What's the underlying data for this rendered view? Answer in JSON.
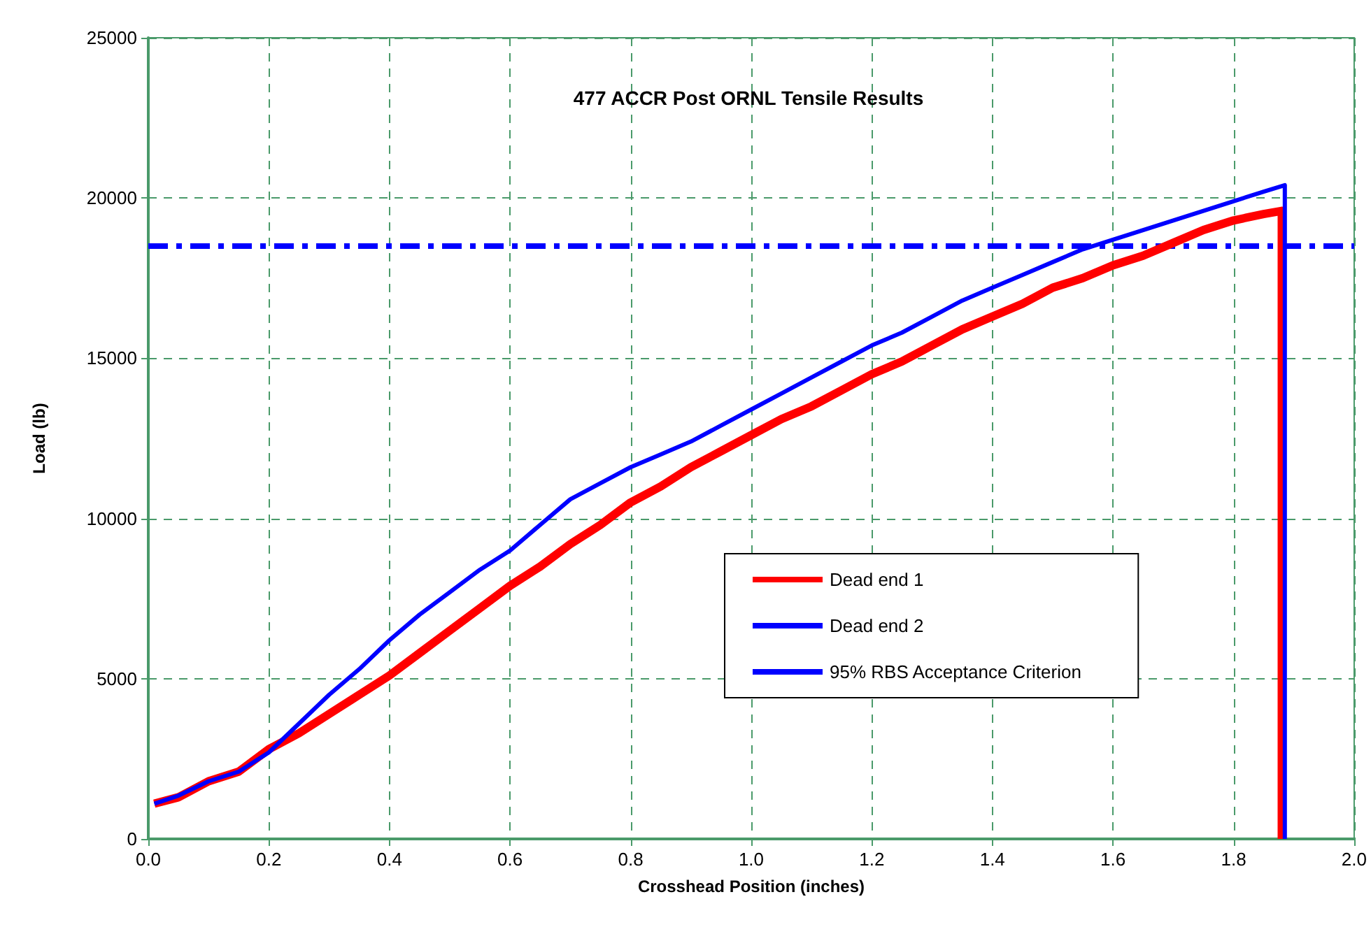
{
  "chart_data": {
    "type": "line",
    "title": "477 ACCR Post ORNL Tensile Results",
    "xlabel": "Crosshead Position (inches)",
    "ylabel": "Load (lb)",
    "xlim": [
      0,
      2
    ],
    "xticks": [
      {
        "value": 0,
        "label": "0.0"
      },
      {
        "value": 0.2,
        "label": "0.2"
      },
      {
        "value": 0.4,
        "label": "0.4"
      },
      {
        "value": 0.6,
        "label": "0.6"
      },
      {
        "value": 0.8,
        "label": "0.8"
      },
      {
        "value": 1,
        "label": "1.0"
      },
      {
        "value": 1.2,
        "label": "1.2"
      },
      {
        "value": 1.4,
        "label": "1.4"
      },
      {
        "value": 1.6,
        "label": "1.6"
      },
      {
        "value": 1.8,
        "label": "1.8"
      },
      {
        "value": 2,
        "label": "2.0"
      }
    ],
    "ylim": [
      0,
      25000
    ],
    "yticks": [
      0,
      5000,
      10000,
      15000,
      20000,
      25000
    ],
    "grid": true,
    "legend": "bottom right",
    "marker": "none",
    "series": [
      {
        "name": "Dead end 1",
        "color": "#ff0000",
        "line_style": "solid",
        "x": [
          0.01,
          0.05,
          0.1,
          0.15,
          0.2,
          0.25,
          0.3,
          0.35,
          0.4,
          0.45,
          0.5,
          0.55,
          0.6,
          0.65,
          0.7,
          0.75,
          0.8,
          0.85,
          0.9,
          0.95,
          1.0,
          1.05,
          1.1,
          1.15,
          1.2,
          1.25,
          1.3,
          1.35,
          1.4,
          1.45,
          1.5,
          1.55,
          1.6,
          1.65,
          1.7,
          1.75,
          1.8,
          1.85,
          1.88,
          1.88
        ],
        "values": [
          1100,
          1300,
          1800,
          2100,
          2800,
          3300,
          3900,
          4500,
          5100,
          5800,
          6500,
          7200,
          7900,
          8500,
          9200,
          9800,
          10500,
          11000,
          11600,
          12100,
          12600,
          13100,
          13500,
          14000,
          14500,
          14900,
          15400,
          15900,
          16300,
          16700,
          17200,
          17500,
          17900,
          18200,
          18600,
          19000,
          19300,
          19500,
          19600,
          0
        ]
      },
      {
        "name": "Dead end 2",
        "color": "#0000ff",
        "line_style": "solid",
        "x": [
          0.01,
          0.05,
          0.1,
          0.15,
          0.2,
          0.25,
          0.3,
          0.35,
          0.4,
          0.45,
          0.5,
          0.55,
          0.6,
          0.65,
          0.7,
          0.75,
          0.8,
          0.85,
          0.9,
          0.95,
          1.0,
          1.05,
          1.1,
          1.15,
          1.2,
          1.25,
          1.3,
          1.35,
          1.4,
          1.45,
          1.5,
          1.55,
          1.6,
          1.65,
          1.7,
          1.75,
          1.8,
          1.85,
          1.885,
          1.885
        ],
        "values": [
          1100,
          1350,
          1800,
          2100,
          2700,
          3600,
          4500,
          5300,
          6200,
          7000,
          7700,
          8400,
          9000,
          9800,
          10600,
          11100,
          11600,
          12000,
          12400,
          12900,
          13400,
          13900,
          14400,
          14900,
          15400,
          15800,
          16300,
          16800,
          17200,
          17600,
          18000,
          18400,
          18700,
          19000,
          19300,
          19600,
          19900,
          20200,
          20400,
          0
        ]
      },
      {
        "name": "95% RBS Acceptance Criterion",
        "color": "#0000ff",
        "line_style": "dashed",
        "x": [
          0,
          2
        ],
        "values": [
          18500,
          18500
        ]
      }
    ]
  }
}
